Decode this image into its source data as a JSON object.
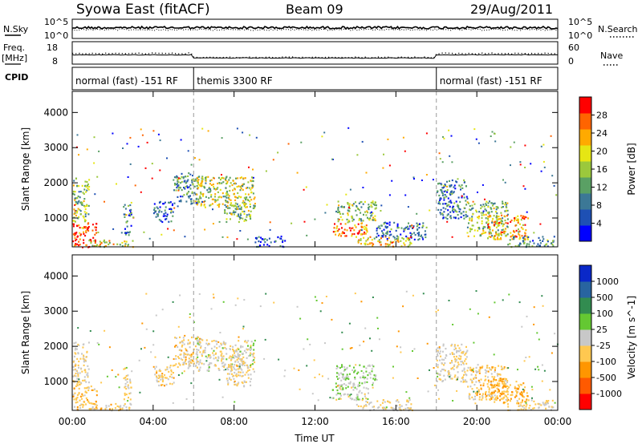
{
  "header": {
    "title": "Syowa East (fitACF)",
    "beam": "Beam 09",
    "date": "29/Aug/2011"
  },
  "noise_panel": {
    "left_label": "N.Sky",
    "left_ticks": [
      "10^5",
      "10^0"
    ],
    "right_label": "N.Search",
    "right_ticks": [
      "10^5",
      "10^0"
    ]
  },
  "freq_panel": {
    "left_label_1": "Freq.",
    "left_label_2": "[MHz]",
    "left_ticks": [
      "18",
      "8"
    ],
    "right_label": "Nave",
    "right_ticks": [
      "60",
      "0"
    ]
  },
  "cpid_panel": {
    "label": "CPID",
    "segments": [
      {
        "start_h": 0,
        "end_h": 6,
        "text": "normal (fast) -151 RF"
      },
      {
        "start_h": 6,
        "end_h": 18,
        "text": "themis 3300 RF"
      },
      {
        "start_h": 18,
        "end_h": 24,
        "text": "normal (fast) -151 RF"
      }
    ]
  },
  "time_axis": {
    "label": "Time UT",
    "ticks": [
      "00:00",
      "04:00",
      "08:00",
      "12:00",
      "16:00",
      "20:00",
      "00:00"
    ],
    "range_h": [
      0,
      24
    ],
    "mode_change_markers_h": [
      6,
      18
    ]
  },
  "chart_data": [
    {
      "type": "heatmap",
      "ylabel": "Slant Range [km]",
      "ylim": [
        180,
        4600
      ],
      "yticks": [
        1000,
        2000,
        3000,
        4000
      ],
      "colorbar": {
        "label": "Power [dB]",
        "ticks": [
          "28",
          "24",
          "20",
          "16",
          "12",
          "8",
          "4"
        ],
        "range": [
          0,
          30
        ],
        "colors": [
          "#0000ff",
          "#1e50b4",
          "#3c7896",
          "#5aa064",
          "#9bc83c",
          "#e6e614",
          "#ffaa00",
          "#ff6400",
          "#ff0000"
        ]
      },
      "echo_regions": [
        {
          "x0": 0.0,
          "x1": 1.2,
          "y0": 190,
          "y1": 900,
          "value": 28
        },
        {
          "x0": 0.0,
          "x1": 0.8,
          "y0": 900,
          "y1": 2150,
          "value": 14
        },
        {
          "x0": 0.8,
          "x1": 3.0,
          "y0": 200,
          "y1": 400,
          "value": 18
        },
        {
          "x0": 2.5,
          "x1": 2.9,
          "y0": 500,
          "y1": 1400,
          "value": 8
        },
        {
          "x0": 4.0,
          "x1": 5.0,
          "y0": 900,
          "y1": 1500,
          "value": 6
        },
        {
          "x0": 5.0,
          "x1": 6.4,
          "y0": 1400,
          "y1": 2300,
          "value": 10
        },
        {
          "x0": 6.1,
          "x1": 9.0,
          "y0": 1300,
          "y1": 2200,
          "value": 16
        },
        {
          "x0": 7.5,
          "x1": 8.8,
          "y0": 900,
          "y1": 1500,
          "value": 14
        },
        {
          "x0": 9.0,
          "x1": 10.5,
          "y0": 200,
          "y1": 500,
          "value": 6
        },
        {
          "x0": 12.8,
          "x1": 14.6,
          "y0": 500,
          "y1": 900,
          "value": 24
        },
        {
          "x0": 13.0,
          "x1": 15.0,
          "y0": 900,
          "y1": 1500,
          "value": 14
        },
        {
          "x0": 14.0,
          "x1": 16.8,
          "y0": 200,
          "y1": 500,
          "value": 20
        },
        {
          "x0": 15.0,
          "x1": 17.5,
          "y0": 400,
          "y1": 900,
          "value": 8
        },
        {
          "x0": 18.0,
          "x1": 19.5,
          "y0": 1000,
          "y1": 2100,
          "value": 8
        },
        {
          "x0": 19.5,
          "x1": 21.5,
          "y0": 500,
          "y1": 1500,
          "value": 14
        },
        {
          "x0": 20.5,
          "x1": 22.5,
          "y0": 400,
          "y1": 1100,
          "value": 22
        },
        {
          "x0": 21.5,
          "x1": 23.8,
          "y0": 200,
          "y1": 500,
          "value": 10
        }
      ]
    },
    {
      "type": "heatmap",
      "ylabel": "Slant Range [km]",
      "ylim": [
        180,
        4600
      ],
      "yticks": [
        1000,
        2000,
        3000,
        4000
      ],
      "colorbar": {
        "label": "Velocity [m s^-1]",
        "ticks": [
          "1000",
          "500",
          "100",
          "25",
          "-25",
          "-100",
          "-500",
          "-1000"
        ],
        "range": [
          -1200,
          1200
        ],
        "colors": [
          "#ff0000",
          "#ff5a00",
          "#ff9600",
          "#ffc850",
          "#c8c8c8",
          "#64c832",
          "#328c50",
          "#2864a0",
          "#0a28c8"
        ]
      },
      "echo_regions": [
        {
          "x0": 0.0,
          "x1": 1.2,
          "y0": 190,
          "y1": 900,
          "value": -300
        },
        {
          "x0": 0.0,
          "x1": 0.8,
          "y0": 900,
          "y1": 2150,
          "value": -120
        },
        {
          "x0": 0.8,
          "x1": 3.0,
          "y0": 200,
          "y1": 400,
          "value": -200
        },
        {
          "x0": 2.5,
          "x1": 2.9,
          "y0": 500,
          "y1": 1400,
          "value": -150
        },
        {
          "x0": 4.0,
          "x1": 5.0,
          "y0": 900,
          "y1": 1500,
          "value": -200
        },
        {
          "x0": 5.0,
          "x1": 6.4,
          "y0": 1400,
          "y1": 2300,
          "value": -180
        },
        {
          "x0": 6.1,
          "x1": 9.0,
          "y0": 1300,
          "y1": 2200,
          "value": -60
        },
        {
          "x0": 7.5,
          "x1": 8.8,
          "y0": 900,
          "y1": 1500,
          "value": -150
        },
        {
          "x0": 12.8,
          "x1": 14.6,
          "y0": 500,
          "y1": 900,
          "value": 60
        },
        {
          "x0": 13.0,
          "x1": 15.0,
          "y0": 900,
          "y1": 1500,
          "value": 120
        },
        {
          "x0": 14.0,
          "x1": 16.8,
          "y0": 200,
          "y1": 500,
          "value": -100
        },
        {
          "x0": 18.0,
          "x1": 19.5,
          "y0": 1000,
          "y1": 2100,
          "value": -120
        },
        {
          "x0": 19.5,
          "x1": 21.5,
          "y0": 500,
          "y1": 1500,
          "value": -250
        },
        {
          "x0": 20.5,
          "x1": 22.5,
          "y0": 400,
          "y1": 1100,
          "value": -400
        },
        {
          "x0": 21.5,
          "x1": 23.8,
          "y0": 200,
          "y1": 500,
          "value": -150
        }
      ]
    }
  ]
}
